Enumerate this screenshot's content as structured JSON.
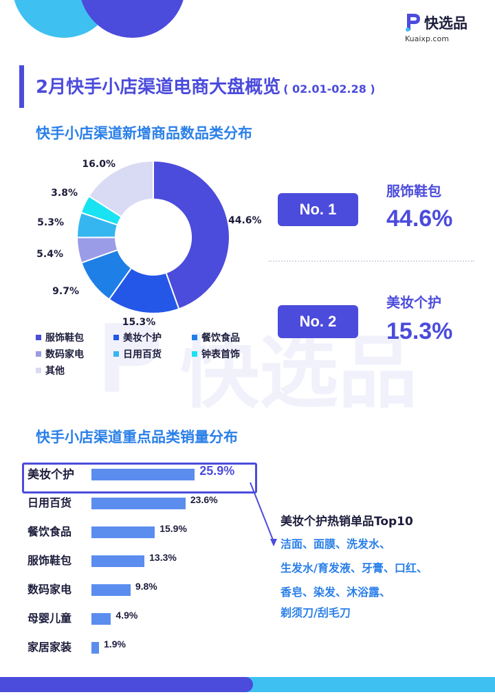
{
  "brand": {
    "name": "快选品",
    "url": "Kuaixp.com",
    "watermark": "快选品",
    "colors": {
      "primary": "#4b4bdc",
      "accent": "#2a7fe8",
      "cyan": "#3ec1f0",
      "bar": "#5b8def"
    }
  },
  "header": {
    "title": "2月快手小店渠道电商大盘概览",
    "date_range": "( 02.01-02.28 )"
  },
  "section1": {
    "title": "快手小店渠道新增商品数品类分布"
  },
  "section2": {
    "title": "快手小店渠道重点品类销量分布"
  },
  "highlights": [
    {
      "rank": "No. 1",
      "category": "服饰鞋包",
      "pct": "44.6%"
    },
    {
      "rank": "No. 2",
      "category": "美妆个护",
      "pct": "15.3%"
    }
  ],
  "top10": {
    "title": "美妆个护热销单品Top10",
    "lines": [
      "洁面、面膜、洗发水、",
      "生发水/育发液、牙膏、口红、",
      "香皂、染发、沐浴露、",
      "剃须刀/刮毛刀"
    ]
  },
  "chart_data": [
    {
      "type": "pie",
      "title": "快手小店渠道新增商品数品类分布",
      "legend_position": "bottom",
      "slices": [
        {
          "label": "服饰鞋包",
          "value": 44.6,
          "display": "44.6%",
          "color": "#4b4bdc"
        },
        {
          "label": "美妆个护",
          "value": 15.3,
          "display": "15.3%",
          "color": "#2457e8"
        },
        {
          "label": "餐饮食品",
          "value": 9.7,
          "display": "9.7%",
          "color": "#1e7fe6"
        },
        {
          "label": "数码家电",
          "value": 5.4,
          "display": "5.4%",
          "color": "#9a9ce8"
        },
        {
          "label": "日用百货",
          "value": 5.3,
          "display": "5.3%",
          "color": "#35b6f0"
        },
        {
          "label": "钟表首饰",
          "value": 3.8,
          "display": "3.8%",
          "color": "#19e2f2"
        },
        {
          "label": "其他",
          "value": 16.0,
          "display": "16.0%",
          "color": "#d9dbf4"
        }
      ]
    },
    {
      "type": "bar",
      "orientation": "horizontal",
      "title": "快手小店渠道重点品类销量分布",
      "highlighted": "美妆个护",
      "categories": [
        "美妆个护",
        "日用百货",
        "餐饮食品",
        "服饰鞋包",
        "数码家电",
        "母婴儿童",
        "家居家装"
      ],
      "values": [
        25.9,
        23.6,
        15.9,
        13.3,
        9.8,
        4.9,
        1.9
      ],
      "labels": [
        "25.9%",
        "23.6%",
        "15.9%",
        "13.3%",
        "9.8%",
        "4.9%",
        "1.9%"
      ]
    }
  ]
}
